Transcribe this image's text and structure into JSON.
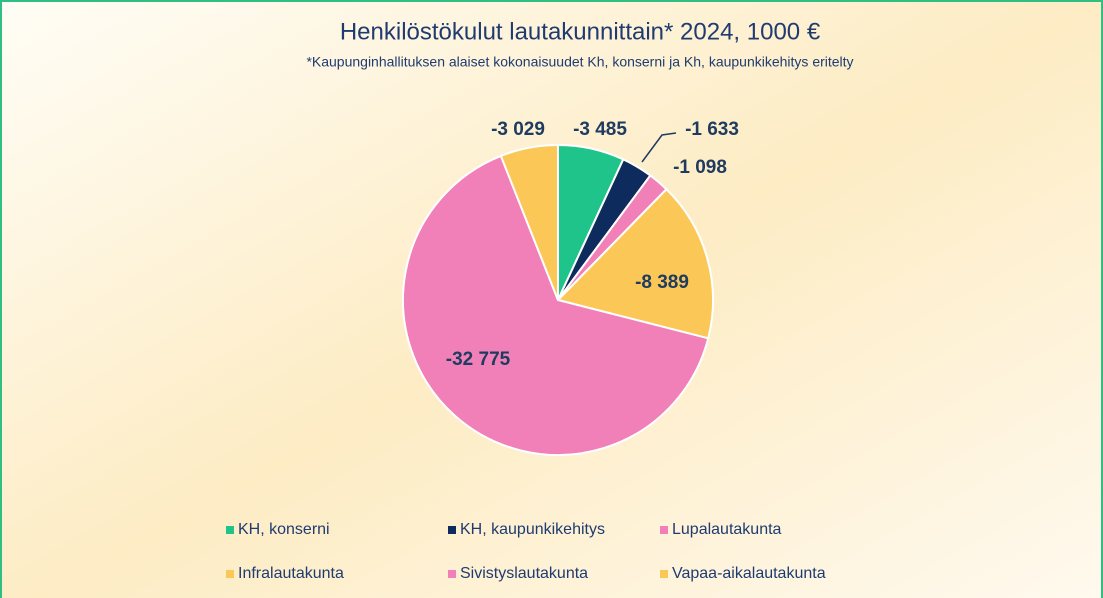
{
  "chart_data": {
    "type": "pie",
    "title": "Henkilöstökulut lautakunnittain* 2024, 1000 €",
    "subtitle": "*Kaupunginhallituksen alaiset kokonaisuudet Kh, konserni ja Kh, kaupunkikehitys eritelty",
    "categories": [
      "KH, konserni",
      "KH, kaupunkikehitys",
      "Lupalautakunta",
      "Infralautakunta",
      "Sivistyslautakunta",
      "Vapaa-aikalautakunta"
    ],
    "values": [
      -3485,
      -1633,
      -1098,
      -8389,
      -32775,
      -3029
    ],
    "value_labels": [
      "-3 485",
      "-1 633",
      "-1 098",
      "-8 389",
      "-32 775",
      "-3 029"
    ],
    "colors": [
      "#1fc48a",
      "#0d2b5c",
      "#f280b8",
      "#fbc857",
      "#f280b8",
      "#fbc857"
    ],
    "legend": "bottom"
  }
}
